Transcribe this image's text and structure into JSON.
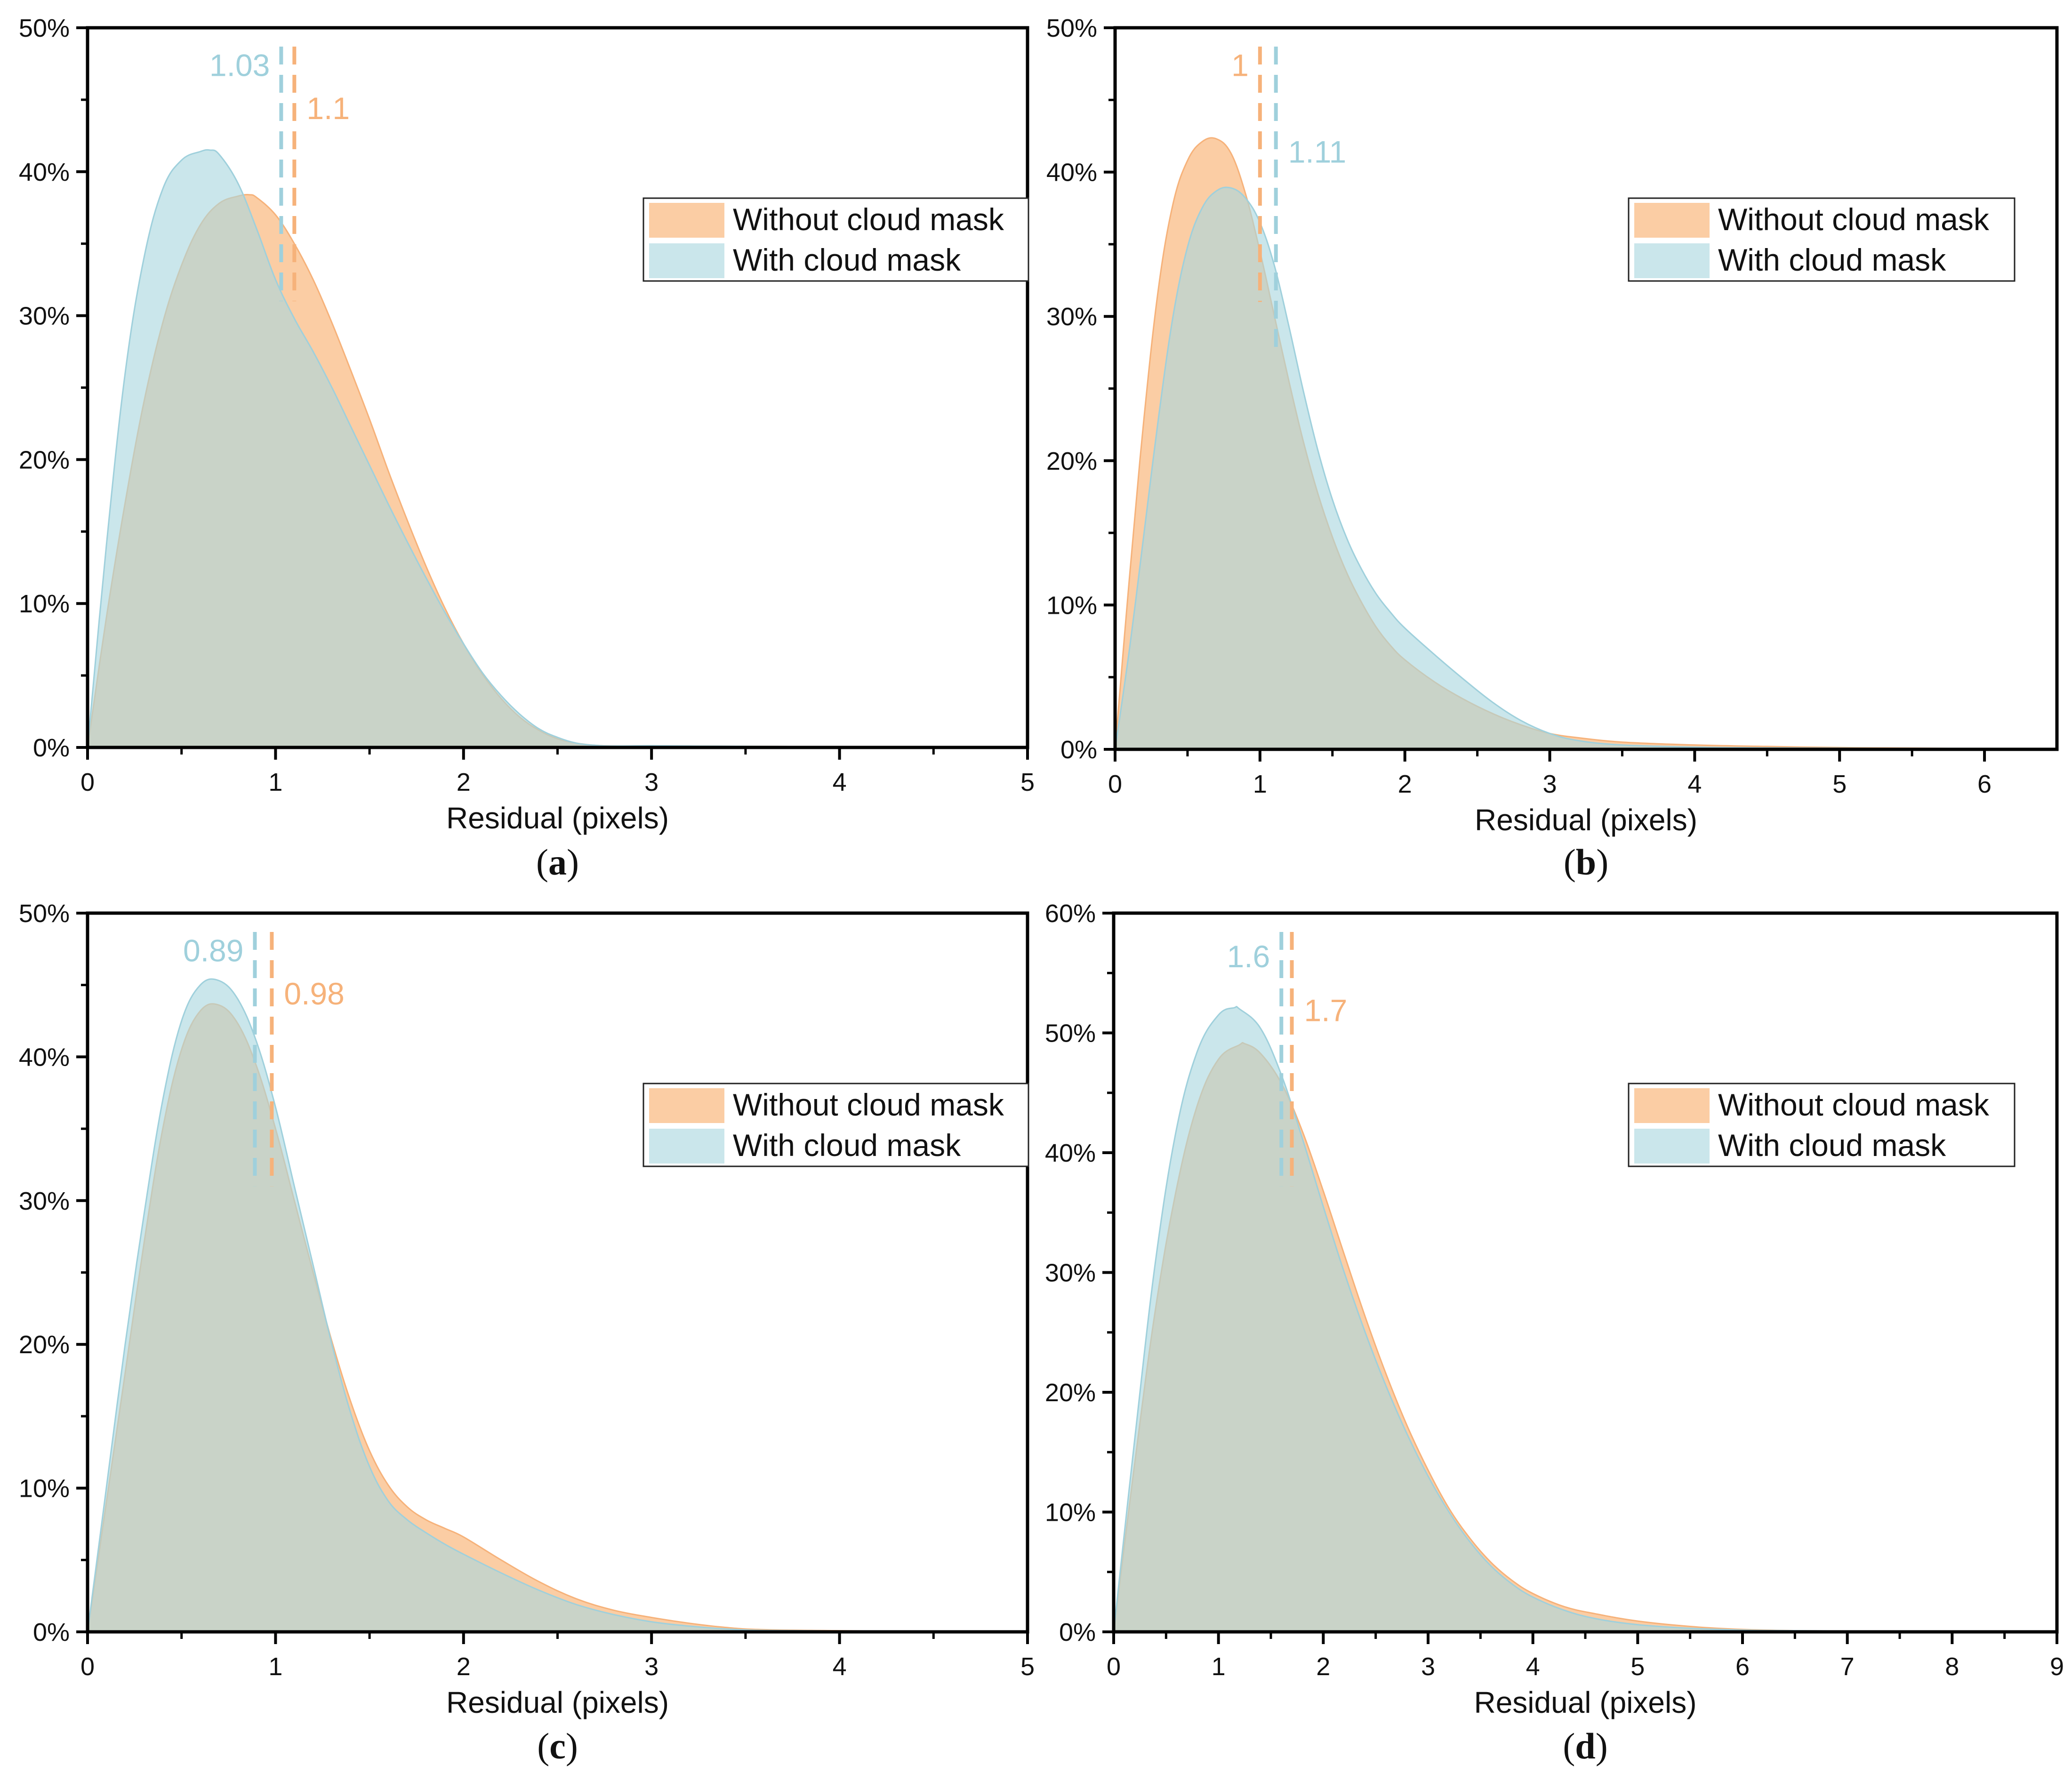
{
  "figure": {
    "colors": {
      "without": "#fbc89a",
      "with": "#a9d6df",
      "without_line": "#f6b27a",
      "with_line": "#9fd0dc",
      "overlap": "#cfd8cf",
      "axis": "#000000"
    }
  },
  "chart_data": [
    {
      "id": "a",
      "panel_label": "a",
      "type": "area",
      "xlabel": "Residual (pixels)",
      "ylabel": "",
      "xlim": [
        0,
        5
      ],
      "ylim": [
        0,
        50
      ],
      "xticks": [
        0,
        1,
        2,
        3,
        4,
        5
      ],
      "xtick_labels": [
        "0",
        "1",
        "2",
        "3",
        "4",
        "5"
      ],
      "yticks": [
        0,
        10,
        20,
        30,
        40,
        50
      ],
      "ytick_labels": [
        "0%",
        "10%",
        "20%",
        "30%",
        "40%",
        "50%"
      ],
      "legend": {
        "position": "upper-right",
        "entries": [
          "Without cloud mask",
          "With cloud mask"
        ]
      },
      "series": [
        {
          "name": "Without cloud mask",
          "color": "#fbc89a",
          "x": [
            0,
            0.1,
            0.2,
            0.3,
            0.4,
            0.5,
            0.6,
            0.7,
            0.8,
            0.86,
            0.9,
            1.0,
            1.1,
            1.2,
            1.3,
            1.4,
            1.5,
            1.6,
            1.7,
            1.8,
            1.9,
            2.0,
            2.1,
            2.2,
            2.3,
            2.4,
            2.5,
            2.6,
            2.7,
            2.8,
            3.0,
            3.2,
            3.5,
            4.0,
            4.5,
            5.0
          ],
          "values": [
            0,
            9,
            17,
            24,
            29.5,
            33.5,
            36.3,
            37.8,
            38.3,
            38.4,
            38.2,
            37.0,
            35.0,
            32.5,
            29.5,
            26.2,
            22.8,
            19.2,
            15.8,
            12.6,
            9.7,
            7.2,
            5.1,
            3.4,
            2.1,
            1.2,
            0.6,
            0.3,
            0.15,
            0.1,
            0.1,
            0.1,
            0.08,
            0.05,
            0.03,
            0.02
          ]
        },
        {
          "name": "With cloud mask",
          "color": "#a9d6df",
          "x": [
            0,
            0.1,
            0.2,
            0.3,
            0.4,
            0.5,
            0.6,
            0.65,
            0.7,
            0.8,
            0.9,
            1.0,
            1.1,
            1.2,
            1.3,
            1.4,
            1.5,
            1.6,
            1.7,
            1.8,
            1.9,
            2.0,
            2.1,
            2.2,
            2.3,
            2.4,
            2.5,
            2.6,
            2.7,
            2.8,
            3.0,
            3.2,
            3.5,
            4.0,
            4.5,
            5.0
          ],
          "values": [
            0,
            14,
            26,
            34,
            38.8,
            40.8,
            41.4,
            41.5,
            41.2,
            39.2,
            36.0,
            32.5,
            29.8,
            27.5,
            25.0,
            22.3,
            19.6,
            16.9,
            14.3,
            11.8,
            9.4,
            7.2,
            5.2,
            3.6,
            2.3,
            1.3,
            0.7,
            0.3,
            0.15,
            0.1,
            0.12,
            0.1,
            0.08,
            0.05,
            0.03,
            0.02
          ]
        }
      ],
      "reference_lines": [
        {
          "series": "With cloud mask",
          "x": 1.03,
          "label": "1.03",
          "label_side": "left",
          "label_y": 47.5
        },
        {
          "series": "Without cloud mask",
          "x": 1.1,
          "label": "1.1",
          "label_side": "right",
          "label_y": 44.5
        }
      ]
    },
    {
      "id": "b",
      "panel_label": "b",
      "type": "area",
      "xlabel": "Residual (pixels)",
      "ylabel": "",
      "xlim": [
        0,
        6.5
      ],
      "ylim": [
        0,
        50
      ],
      "xticks": [
        0,
        1,
        2,
        3,
        4,
        5,
        6
      ],
      "xtick_labels": [
        "0",
        "1",
        "2",
        "3",
        "4",
        "5",
        "6"
      ],
      "yticks": [
        0,
        10,
        20,
        30,
        40,
        50
      ],
      "ytick_labels": [
        "0%",
        "10%",
        "20%",
        "30%",
        "40%",
        "50%"
      ],
      "legend": {
        "position": "upper-right",
        "entries": [
          "Without cloud mask",
          "With cloud mask"
        ]
      },
      "series": [
        {
          "name": "Without cloud mask",
          "color": "#fbc89a",
          "x": [
            0,
            0.1,
            0.2,
            0.3,
            0.4,
            0.5,
            0.6,
            0.7,
            0.8,
            0.9,
            1.0,
            1.1,
            1.2,
            1.3,
            1.4,
            1.5,
            1.6,
            1.7,
            1.8,
            1.9,
            2.0,
            2.2,
            2.4,
            2.6,
            2.8,
            3.0,
            3.2,
            3.5,
            4.0,
            4.5,
            5.0,
            5.5,
            6.0,
            6.5
          ],
          "values": [
            0,
            12,
            23,
            32,
            37.8,
            40.8,
            42.1,
            42.3,
            41.3,
            38.5,
            34.5,
            30.0,
            25.5,
            21.3,
            17.7,
            14.7,
            12.2,
            10.2,
            8.5,
            7.2,
            6.2,
            4.7,
            3.5,
            2.5,
            1.7,
            1.1,
            0.8,
            0.5,
            0.3,
            0.2,
            0.12,
            0.08,
            0.05,
            0.04
          ]
        },
        {
          "name": "With cloud mask",
          "color": "#a9d6df",
          "x": [
            0,
            0.1,
            0.2,
            0.3,
            0.4,
            0.5,
            0.6,
            0.7,
            0.8,
            0.9,
            1.0,
            1.1,
            1.2,
            1.3,
            1.4,
            1.5,
            1.6,
            1.7,
            1.8,
            1.9,
            2.0,
            2.2,
            2.4,
            2.6,
            2.8,
            3.0,
            3.2,
            3.5,
            4.0,
            4.5,
            5.0,
            5.5,
            6.0,
            6.5
          ],
          "values": [
            0,
            7,
            15,
            23,
            30,
            34.8,
            37.5,
            38.7,
            38.9,
            38.2,
            36.5,
            33.5,
            29.3,
            24.8,
            20.7,
            17.3,
            14.6,
            12.5,
            10.8,
            9.5,
            8.4,
            6.6,
            4.9,
            3.3,
            2.0,
            1.1,
            0.6,
            0.3,
            0.15,
            0.1,
            0.08,
            0.06,
            0.05,
            0.04
          ]
        }
      ],
      "reference_lines": [
        {
          "series": "Without cloud mask",
          "x": 1.0,
          "label": "1",
          "label_side": "left",
          "label_y": 47.5
        },
        {
          "series": "With cloud mask",
          "x": 1.11,
          "label": "1.11",
          "label_side": "right",
          "label_y": 41.5
        }
      ]
    },
    {
      "id": "c",
      "panel_label": "c",
      "type": "area",
      "xlabel": "Residual (pixels)",
      "ylabel": "",
      "xlim": [
        0,
        5
      ],
      "ylim": [
        0,
        50
      ],
      "xticks": [
        0,
        1,
        2,
        3,
        4,
        5
      ],
      "xtick_labels": [
        "0",
        "1",
        "2",
        "3",
        "4",
        "5"
      ],
      "yticks": [
        0,
        10,
        20,
        30,
        40,
        50
      ],
      "ytick_labels": [
        "0%",
        "10%",
        "20%",
        "30%",
        "40%",
        "50%"
      ],
      "legend": {
        "position": "upper-right",
        "entries": [
          "Without cloud mask",
          "With cloud mask"
        ]
      },
      "series": [
        {
          "name": "Without cloud mask",
          "color": "#fbc89a",
          "x": [
            0,
            0.1,
            0.2,
            0.3,
            0.4,
            0.5,
            0.6,
            0.7,
            0.8,
            0.9,
            1.0,
            1.1,
            1.2,
            1.3,
            1.4,
            1.5,
            1.6,
            1.7,
            1.8,
            1.9,
            2.0,
            2.2,
            2.4,
            2.6,
            2.8,
            3.0,
            3.2,
            3.4,
            3.6,
            4.0,
            4.5,
            5.0
          ],
          "values": [
            0,
            9,
            18,
            27,
            35,
            40.5,
            43.2,
            43.6,
            42.3,
            39.3,
            35.0,
            30.0,
            25.0,
            20.2,
            16.0,
            12.6,
            10.2,
            8.7,
            7.8,
            7.2,
            6.6,
            5.0,
            3.5,
            2.3,
            1.5,
            1.0,
            0.6,
            0.3,
            0.15,
            0.08,
            0.04,
            0.02
          ]
        },
        {
          "name": "With cloud mask",
          "color": "#a9d6df",
          "x": [
            0,
            0.1,
            0.2,
            0.3,
            0.4,
            0.5,
            0.6,
            0.7,
            0.8,
            0.9,
            1.0,
            1.1,
            1.2,
            1.3,
            1.4,
            1.5,
            1.6,
            1.7,
            1.8,
            1.9,
            2.0,
            2.2,
            2.4,
            2.6,
            2.8,
            3.0,
            3.2,
            3.4,
            3.6,
            4.0,
            4.5,
            5.0
          ],
          "values": [
            0,
            10,
            20,
            29,
            37,
            42.5,
            45.0,
            45.3,
            44.0,
            41.0,
            36.5,
            31.0,
            25.5,
            20.0,
            15.2,
            11.5,
            9.1,
            7.8,
            6.9,
            6.1,
            5.4,
            4.1,
            2.9,
            1.9,
            1.2,
            0.7,
            0.4,
            0.2,
            0.1,
            0.06,
            0.04,
            0.02
          ]
        }
      ],
      "reference_lines": [
        {
          "series": "With cloud mask",
          "x": 0.89,
          "label": "0.89",
          "label_side": "left",
          "label_y": 47.5
        },
        {
          "series": "Without cloud mask",
          "x": 0.98,
          "label": "0.98",
          "label_side": "right",
          "label_y": 44.5
        }
      ]
    },
    {
      "id": "d",
      "panel_label": "d",
      "type": "area",
      "xlabel": "Residual (pixels)",
      "ylabel": "",
      "xlim": [
        0,
        9
      ],
      "ylim": [
        0,
        60
      ],
      "xticks": [
        0,
        1,
        2,
        3,
        4,
        5,
        6,
        7,
        8,
        9
      ],
      "xtick_labels": [
        "0",
        "1",
        "2",
        "3",
        "4",
        "5",
        "6",
        "7",
        "8",
        "9"
      ],
      "yticks": [
        0,
        10,
        20,
        30,
        40,
        50,
        60
      ],
      "ytick_labels": [
        "0%",
        "10%",
        "20%",
        "30%",
        "40%",
        "50%",
        "60%"
      ],
      "legend": {
        "position": "upper-right",
        "entries": [
          "Without cloud mask",
          "With cloud mask"
        ]
      },
      "series": [
        {
          "name": "Without cloud mask",
          "color": "#fbc89a",
          "x": [
            0,
            0.2,
            0.4,
            0.6,
            0.8,
            1.0,
            1.2,
            1.25,
            1.4,
            1.6,
            1.8,
            2.0,
            2.2,
            2.4,
            2.6,
            2.8,
            3.0,
            3.2,
            3.4,
            3.6,
            3.8,
            4.0,
            4.3,
            4.6,
            5.0,
            5.5,
            6.0,
            6.5,
            7.0,
            8.0,
            9.0
          ],
          "values": [
            0,
            14,
            27,
            37,
            44,
            47.8,
            49.0,
            49.1,
            48.3,
            45.8,
            41.8,
            36.8,
            31.5,
            26.3,
            21.5,
            17.2,
            13.5,
            10.3,
            7.8,
            5.8,
            4.3,
            3.2,
            2.1,
            1.5,
            0.9,
            0.45,
            0.2,
            0.1,
            0.07,
            0.05,
            0.04
          ]
        },
        {
          "name": "With cloud mask",
          "color": "#a9d6df",
          "x": [
            0,
            0.2,
            0.4,
            0.6,
            0.8,
            1.0,
            1.15,
            1.2,
            1.4,
            1.6,
            1.8,
            2.0,
            2.2,
            2.4,
            2.6,
            2.8,
            3.0,
            3.2,
            3.4,
            3.6,
            3.8,
            4.0,
            4.3,
            4.6,
            5.0,
            5.5,
            6.0,
            6.5,
            7.0,
            8.0,
            9.0
          ],
          "values": [
            0,
            16,
            31,
            42,
            48.5,
            51.5,
            52.1,
            52.0,
            50.4,
            46.5,
            41.2,
            35.5,
            30.0,
            25.0,
            20.5,
            16.5,
            13.0,
            10.0,
            7.5,
            5.5,
            4.0,
            2.9,
            1.8,
            1.1,
            0.6,
            0.3,
            0.15,
            0.1,
            0.07,
            0.05,
            0.04
          ]
        }
      ],
      "reference_lines": [
        {
          "series": "With cloud mask",
          "x": 1.6,
          "label": "1.6",
          "label_side": "left",
          "label_y": 56.5
        },
        {
          "series": "Without cloud mask",
          "x": 1.7,
          "label": "1.7",
          "label_side": "right",
          "label_y": 52.0
        }
      ]
    }
  ]
}
